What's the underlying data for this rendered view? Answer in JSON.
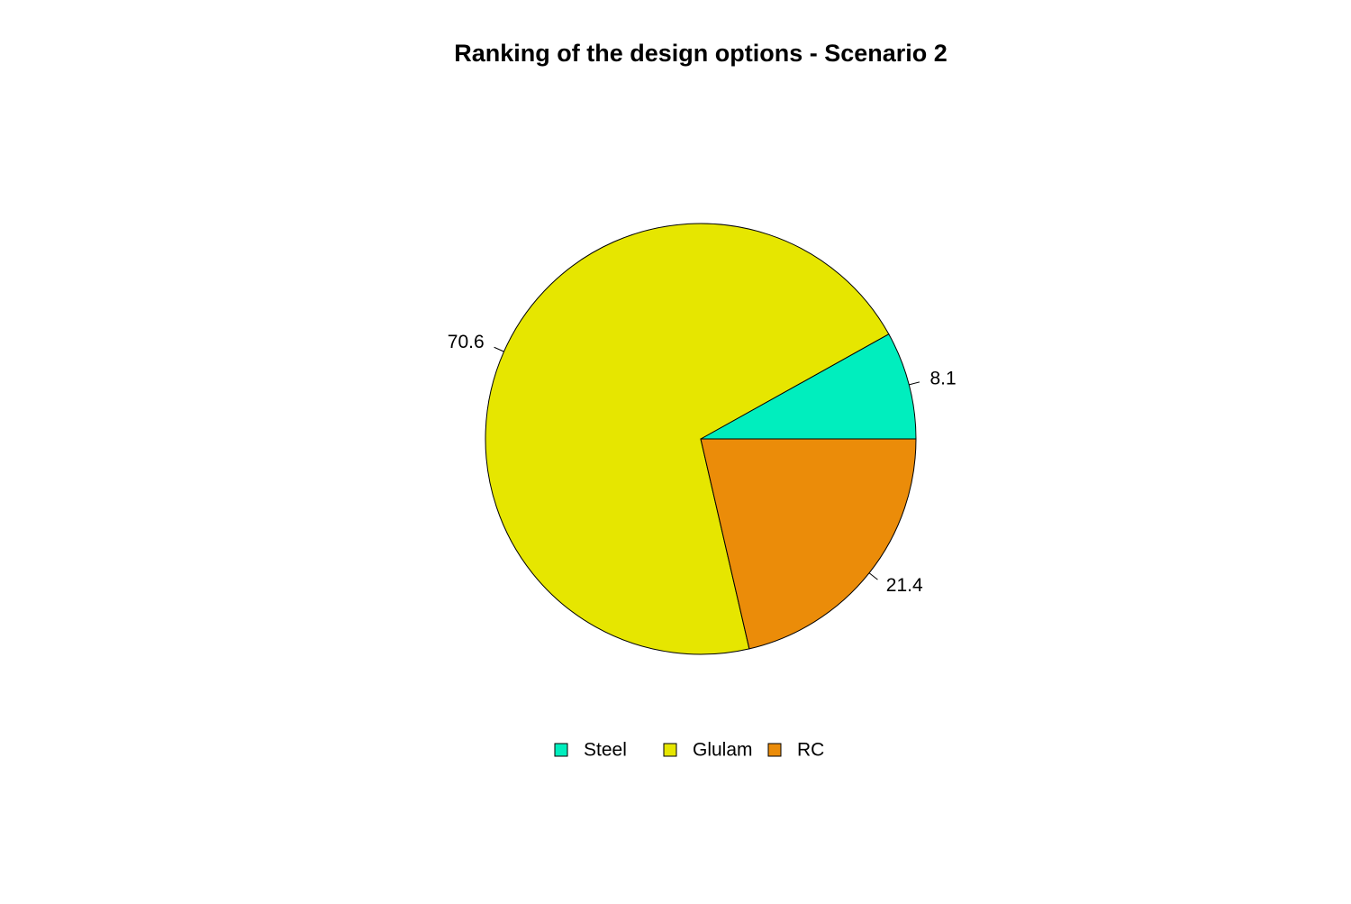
{
  "chart_data": {
    "type": "pie",
    "title": "Ranking of the design options - Scenario 2",
    "categories": [
      "Steel",
      "Glulam",
      "RC"
    ],
    "values": [
      8.1,
      70.6,
      21.4
    ],
    "colors": [
      "#00EEBE",
      "#E6E600",
      "#EB8C09"
    ],
    "legend": "bottom"
  }
}
